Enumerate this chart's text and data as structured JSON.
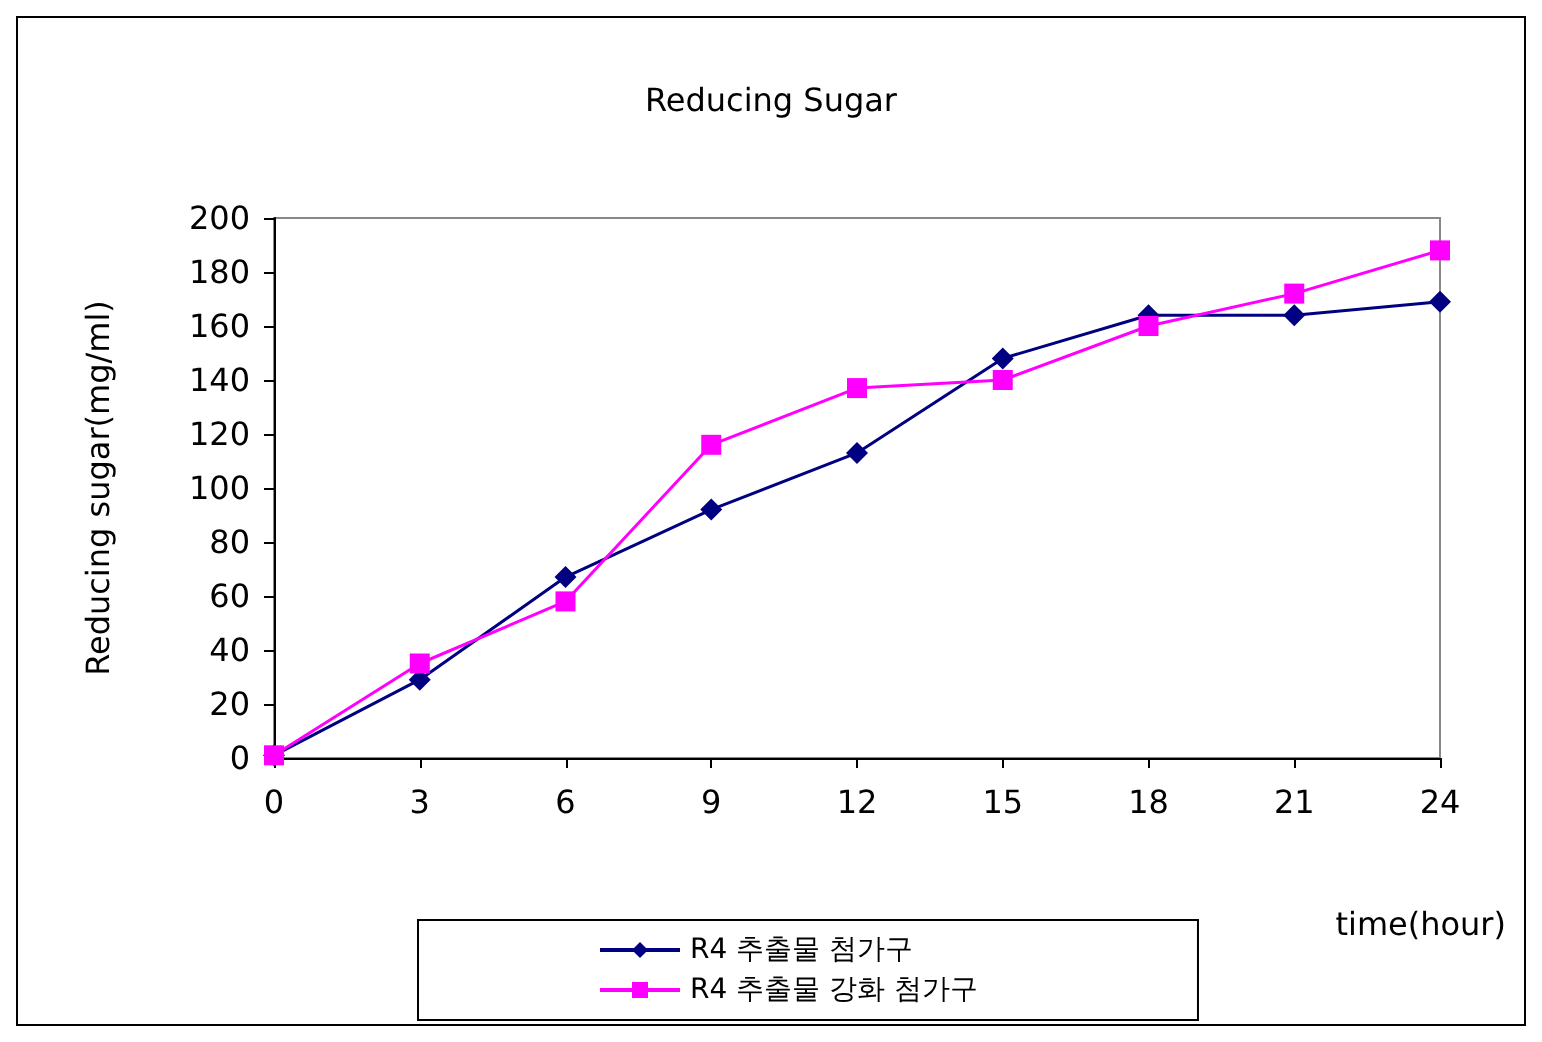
{
  "chart_data": {
    "type": "line",
    "title": "Reducing Sugar",
    "xlabel": "time(hour)",
    "ylabel": "Reducing sugar(mg/ml)",
    "x": [
      0,
      3,
      6,
      9,
      12,
      15,
      18,
      21,
      24
    ],
    "series": [
      {
        "name": "R4 추출물 첨가구",
        "color": "#000080",
        "marker": "diamond",
        "values": [
          1,
          29,
          67,
          92,
          113,
          148,
          164,
          164,
          169
        ]
      },
      {
        "name": "R4 추출물 강화 첨가구",
        "color": "#ff00ff",
        "marker": "square",
        "values": [
          1,
          35,
          58,
          116,
          137,
          140,
          160,
          172,
          188
        ]
      }
    ],
    "xlim": [
      0,
      24
    ],
    "xticks": [
      0,
      3,
      6,
      9,
      12,
      15,
      18,
      21,
      24
    ],
    "ylim": [
      0,
      200
    ],
    "yticks": [
      0,
      20,
      40,
      60,
      80,
      100,
      120,
      140,
      160,
      180,
      200
    ],
    "grid": false,
    "legend": "bottom",
    "line_style": "solid"
  }
}
